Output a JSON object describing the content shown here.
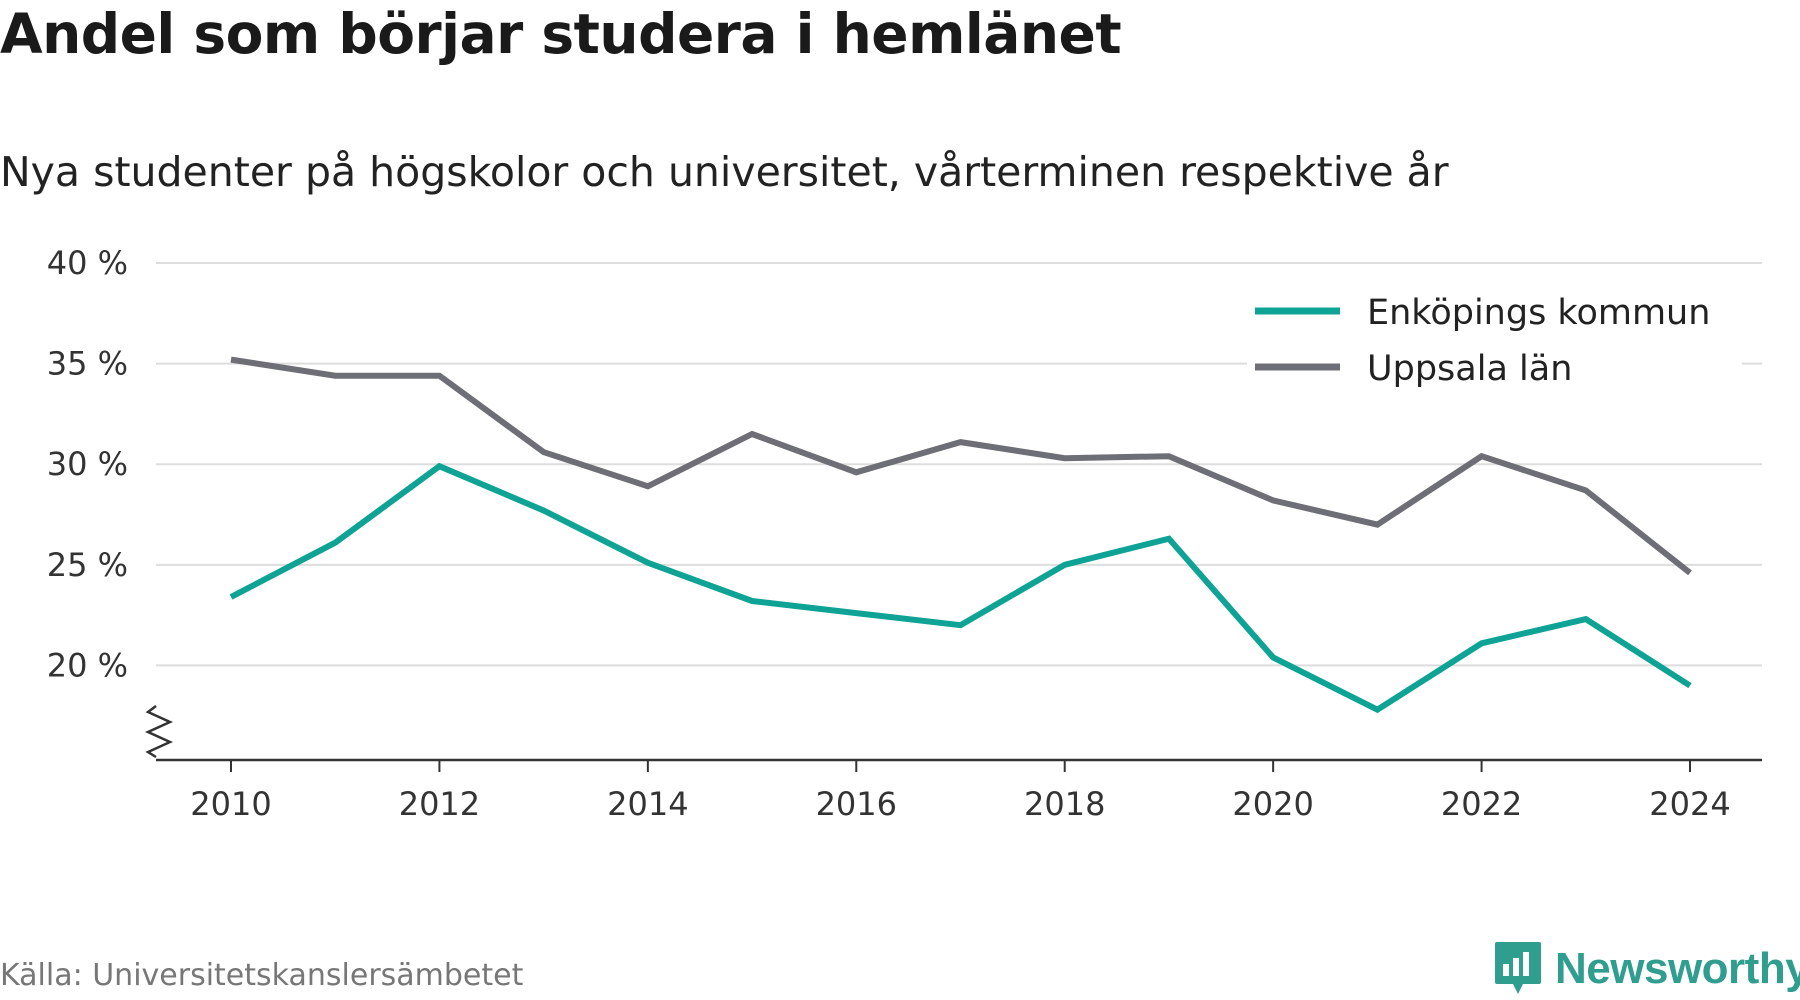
{
  "header": {
    "title": "Andel som börjar studera i hemlänet",
    "subtitle": "Nya studenter på högskolor och universitet, vårterminen respektive år"
  },
  "footer": {
    "source": "Källa: Universitetskanslersämbetet",
    "brand": "Newsworthy",
    "brand_color": "#2f9e8f"
  },
  "chart_data": {
    "type": "line",
    "title": "Andel som börjar studera i hemlänet",
    "subtitle": "Nya studenter på högskolor och universitet, vårterminen respektive år",
    "x": [
      2010,
      2011,
      2012,
      2013,
      2014,
      2015,
      2016,
      2017,
      2018,
      2019,
      2020,
      2021,
      2022,
      2023,
      2024
    ],
    "series": [
      {
        "name": "Enköpings kommun",
        "color": "#0fa396",
        "values": [
          23.4,
          26.1,
          29.9,
          27.7,
          25.1,
          23.2,
          22.6,
          22.0,
          25.0,
          26.3,
          20.4,
          17.8,
          21.1,
          22.3,
          19.0
        ]
      },
      {
        "name": "Uppsala län",
        "color": "#6e6e76",
        "values": [
          35.2,
          34.4,
          34.4,
          30.6,
          28.9,
          31.5,
          29.6,
          31.1,
          30.3,
          30.4,
          28.2,
          27.0,
          30.4,
          28.7,
          24.6
        ]
      }
    ],
    "ylim": [
      15.3,
      40
    ],
    "yticks": [
      20,
      25,
      30,
      35,
      40
    ],
    "ytick_labels": [
      "20 %",
      "25 %",
      "30 %",
      "35 %",
      "40 %"
    ],
    "xticks": [
      2010,
      2012,
      2014,
      2016,
      2018,
      2020,
      2022,
      2024
    ],
    "xtick_labels": [
      "2010",
      "2012",
      "2014",
      "2016",
      "2018",
      "2020",
      "2022",
      "2024"
    ],
    "xlabel": "",
    "ylabel": "",
    "grid": true,
    "legend": "top-right",
    "axis_break": true
  }
}
